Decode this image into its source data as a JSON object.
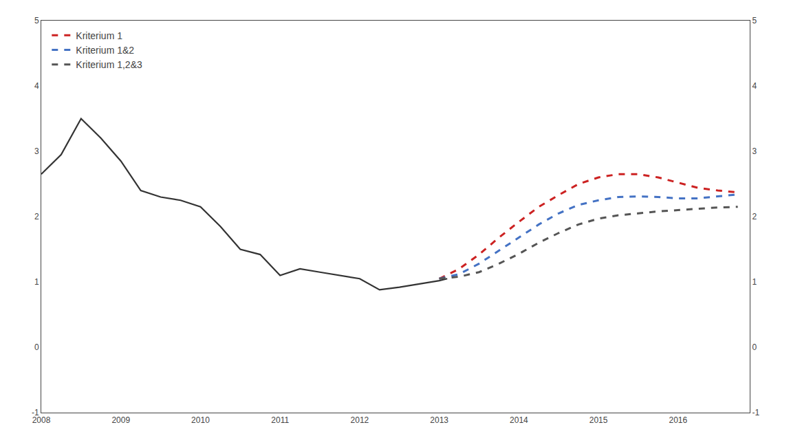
{
  "chart_data": {
    "type": "line",
    "xlim": [
      2008.0,
      2016.9
    ],
    "xticks": [
      2008,
      2009,
      2010,
      2011,
      2012,
      2013,
      2014,
      2015,
      2016
    ],
    "ylim": [
      -1,
      5
    ],
    "yticks": [
      -1,
      0,
      1,
      2,
      3,
      4,
      5
    ],
    "y2lim": [
      -1,
      5
    ],
    "y2ticks": [
      -1,
      0,
      1,
      2,
      3,
      4,
      5
    ],
    "grid": false,
    "legend": "upper left",
    "series": [
      {
        "color": "#333333",
        "line_style": "solid",
        "x": [
          2008.0,
          2008.25,
          2008.5,
          2008.75,
          2009.0,
          2009.25,
          2009.5,
          2009.75,
          2010.0,
          2010.25,
          2010.5,
          2010.75,
          2011.0,
          2011.25,
          2011.5,
          2011.75,
          2012.0,
          2012.25,
          2012.5,
          2012.75,
          2013.0,
          2013.1
        ],
        "values": [
          2.65,
          2.95,
          3.5,
          3.2,
          2.85,
          2.4,
          2.3,
          2.25,
          2.15,
          1.85,
          1.5,
          1.42,
          1.1,
          1.2,
          1.15,
          1.1,
          1.05,
          0.88,
          0.92,
          0.97,
          1.02,
          1.05
        ]
      },
      {
        "name": "Kriterium 1",
        "color": "#cc2222",
        "line_style": "dashed",
        "x": [
          2013.0,
          2013.25,
          2013.5,
          2013.75,
          2014.0,
          2014.25,
          2014.5,
          2014.75,
          2015.0,
          2015.25,
          2015.5,
          2015.75,
          2016.0,
          2016.25,
          2016.5,
          2016.75
        ],
        "values": [
          1.05,
          1.2,
          1.42,
          1.68,
          1.92,
          2.15,
          2.33,
          2.5,
          2.6,
          2.65,
          2.65,
          2.6,
          2.52,
          2.44,
          2.4,
          2.37
        ]
      },
      {
        "name": "Kriterium 1&2",
        "color": "#4472c4",
        "line_style": "dashed",
        "x": [
          2013.0,
          2013.25,
          2013.5,
          2013.75,
          2014.0,
          2014.25,
          2014.5,
          2014.75,
          2015.0,
          2015.25,
          2015.5,
          2015.75,
          2016.0,
          2016.25,
          2016.5,
          2016.75
        ],
        "values": [
          1.05,
          1.12,
          1.28,
          1.48,
          1.68,
          1.88,
          2.05,
          2.18,
          2.25,
          2.3,
          2.31,
          2.3,
          2.28,
          2.28,
          2.31,
          2.34
        ]
      },
      {
        "name": "Kriterium 1,2&3",
        "color": "#555555",
        "line_style": "dashed",
        "x": [
          2013.0,
          2013.25,
          2013.5,
          2013.75,
          2014.0,
          2014.25,
          2014.5,
          2014.75,
          2015.0,
          2015.25,
          2015.5,
          2015.75,
          2016.0,
          2016.25,
          2016.5,
          2016.75
        ],
        "values": [
          1.05,
          1.08,
          1.15,
          1.28,
          1.43,
          1.6,
          1.75,
          1.88,
          1.97,
          2.02,
          2.05,
          2.08,
          2.1,
          2.12,
          2.14,
          2.15
        ]
      }
    ]
  }
}
